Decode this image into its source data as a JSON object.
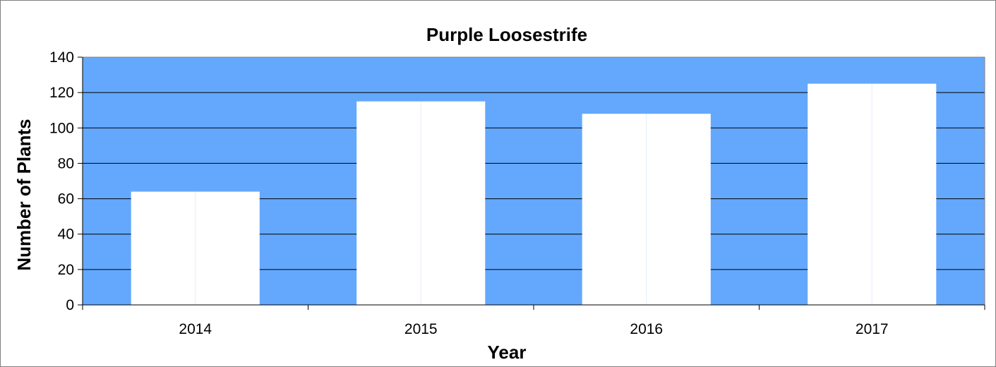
{
  "chart_data": {
    "type": "bar",
    "title": "Purple Loosestrife",
    "xlabel": "Year",
    "ylabel": "Number of Plants",
    "categories": [
      "2014",
      "2015",
      "2016",
      "2017"
    ],
    "values": [
      64,
      115,
      108,
      125
    ],
    "ylim": [
      0,
      140
    ],
    "yticks": [
      "0",
      "20",
      "40",
      "60",
      "80",
      "100",
      "120",
      "140"
    ],
    "grid": true,
    "legend": "none",
    "colors": {
      "plot_background": "#63a8fd",
      "bar_fill": "#ffffff",
      "grid": "#000000",
      "axis": "#000000"
    }
  }
}
